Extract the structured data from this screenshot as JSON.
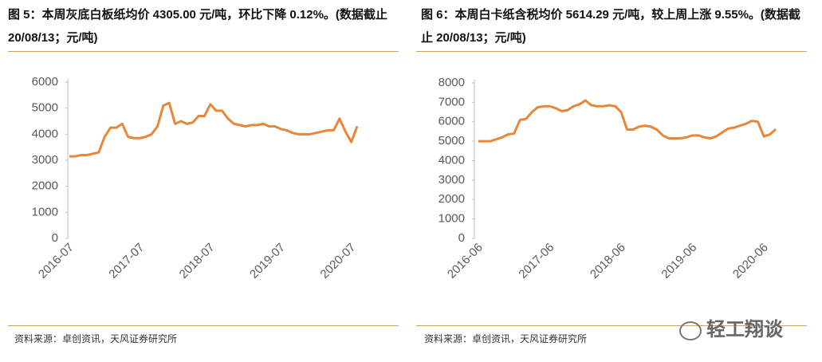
{
  "chart_data": [
    {
      "type": "line",
      "title": "图 5：本周灰底白板纸均价 4305.00 元/吨，环比下降 0.12%。(数据截止 20/08/13；元/吨)",
      "source": "资料来源：卓创资讯，天风证券研究所",
      "categories": [
        "2016-07",
        null,
        null,
        null,
        null,
        null,
        null,
        null,
        null,
        null,
        null,
        null,
        "2017-07",
        null,
        null,
        null,
        null,
        null,
        null,
        null,
        null,
        null,
        null,
        null,
        "2018-07",
        null,
        null,
        null,
        null,
        null,
        null,
        null,
        null,
        null,
        null,
        null,
        "2019-07",
        null,
        null,
        null,
        null,
        null,
        null,
        null,
        null,
        null,
        null,
        null,
        "2020-07",
        null
      ],
      "series": [
        {
          "name": "灰底白板纸均价",
          "color": "#e8863a",
          "values": [
            3150,
            3150,
            3200,
            3200,
            3250,
            3300,
            3900,
            4250,
            4250,
            4400,
            3900,
            3850,
            3850,
            3900,
            4000,
            4300,
            5100,
            5200,
            4400,
            4500,
            4400,
            4450,
            4700,
            4700,
            5150,
            4900,
            4900,
            4600,
            4400,
            4350,
            4300,
            4350,
            4350,
            4400,
            4300,
            4300,
            4200,
            4150,
            4050,
            4000,
            4000,
            4000,
            4050,
            4100,
            4150,
            4150,
            4600,
            4100,
            3700,
            4305
          ]
        }
      ],
      "ylim": [
        0,
        6000
      ],
      "yticks": [
        0,
        1000,
        2000,
        3000,
        4000,
        5000,
        6000
      ]
    },
    {
      "type": "line",
      "title": "图 6：本周白卡纸含税均价 5614.29 元/吨，较上周上涨 9.55%。(数据截止 20/08/13；元/吨)",
      "source": "资料来源：卓创资讯，天风证券研究所",
      "categories": [
        "2016-06",
        null,
        null,
        null,
        null,
        null,
        null,
        null,
        null,
        null,
        null,
        null,
        "2017-06",
        null,
        null,
        null,
        null,
        null,
        null,
        null,
        null,
        null,
        null,
        null,
        "2018-06",
        null,
        null,
        null,
        null,
        null,
        null,
        null,
        null,
        null,
        null,
        null,
        "2019-06",
        null,
        null,
        null,
        null,
        null,
        null,
        null,
        null,
        null,
        null,
        null,
        "2020-06",
        null,
        null
      ],
      "series": [
        {
          "name": "白卡纸含税均价",
          "color": "#e8863a",
          "values": [
            5000,
            5000,
            5000,
            5100,
            5200,
            5350,
            5400,
            6100,
            6150,
            6500,
            6750,
            6800,
            6800,
            6700,
            6550,
            6600,
            6800,
            6900,
            7100,
            6850,
            6800,
            6800,
            6850,
            6800,
            6500,
            5600,
            5600,
            5750,
            5800,
            5750,
            5600,
            5300,
            5150,
            5150,
            5150,
            5200,
            5300,
            5300,
            5200,
            5150,
            5250,
            5450,
            5650,
            5700,
            5800,
            5900,
            6050,
            6000,
            5250,
            5350,
            5614.29
          ]
        }
      ],
      "ylim": [
        0,
        8000
      ],
      "yticks": [
        0,
        1000,
        2000,
        3000,
        4000,
        5000,
        6000,
        7000,
        8000
      ]
    }
  ],
  "watermark": "轻工翔谈"
}
